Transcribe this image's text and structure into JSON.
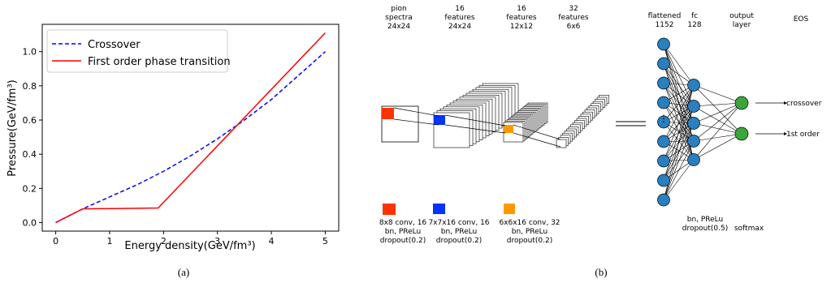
{
  "panel_a": {
    "caption": "(a)",
    "xlabel": "Energy density(GeV/fm³)",
    "ylabel": "Pressure(GeV/fm³)"
  },
  "panel_b": {
    "caption": "(b)",
    "conv_headers": [
      {
        "line1": "pion",
        "line2": "spectra",
        "line3": "24x24"
      },
      {
        "line1": "16",
        "line2": "features",
        "line3": "24x24"
      },
      {
        "line1": "16",
        "line2": "features",
        "line3": "12x12"
      },
      {
        "line1": "32",
        "line2": "features",
        "line3": "6x6"
      }
    ],
    "fc_headers": [
      {
        "line1": "flattened",
        "line2": "1152"
      },
      {
        "line1": "fc",
        "line2": "128"
      },
      {
        "line1": "output",
        "line2": "layer"
      },
      {
        "line1": "EOS",
        "line2": ""
      }
    ],
    "kernel_labels": [
      {
        "color": "#ff3300",
        "line1": "8x8 conv, 16",
        "line2": "bn, PReLu",
        "line3": "dropout(0.2)"
      },
      {
        "color": "#0033ff",
        "line1": "7x7x16 conv, 16",
        "line2": "bn, PReLu",
        "line3": "dropout(0.2)"
      },
      {
        "color": "#ff9900",
        "line1": "6x6x16 conv, 32",
        "line2": "bn, PReLu",
        "line3": "dropout(0.2)"
      }
    ],
    "fc_note": {
      "line1": "bn, PReLu",
      "line2": "dropout(0.5)"
    },
    "softmax": "softmax",
    "outputs": [
      "crossover",
      "1st order"
    ],
    "node_colors": {
      "hidden": "#2a7fbf",
      "output": "#3aa63a"
    }
  },
  "chart_data": {
    "type": "line",
    "title": "",
    "xlabel": "Energy density(GeV/fm³)",
    "ylabel": "Pressure(GeV/fm³)",
    "xlim": [
      -0.25,
      5.25
    ],
    "ylim": [
      -0.05,
      1.16
    ],
    "xticks": [
      0,
      1,
      2,
      3,
      4,
      5
    ],
    "yticks": [
      0.0,
      0.2,
      0.4,
      0.6,
      0.8,
      1.0
    ],
    "xtick_labels": [
      "0",
      "1",
      "2",
      "3",
      "4",
      "5"
    ],
    "ytick_labels": [
      "0.0",
      "0.2",
      "0.4",
      "0.6",
      "0.8",
      "1.0"
    ],
    "grid": false,
    "legend_position": "top-left",
    "series": [
      {
        "name": "Crossover",
        "color": "#0000ff",
        "style": "dashed",
        "x": [
          0,
          0.5,
          1,
          1.5,
          2,
          2.5,
          3,
          3.5,
          4,
          4.5,
          5
        ],
        "y": [
          0.0,
          0.08,
          0.15,
          0.22,
          0.3,
          0.39,
          0.49,
          0.6,
          0.72,
          0.86,
          1.0
        ]
      },
      {
        "name": "First order phase transition",
        "color": "#ff0000",
        "style": "solid",
        "x": [
          0,
          0.5,
          1.9,
          5.0
        ],
        "y": [
          0.0,
          0.08,
          0.085,
          1.11
        ]
      }
    ]
  }
}
